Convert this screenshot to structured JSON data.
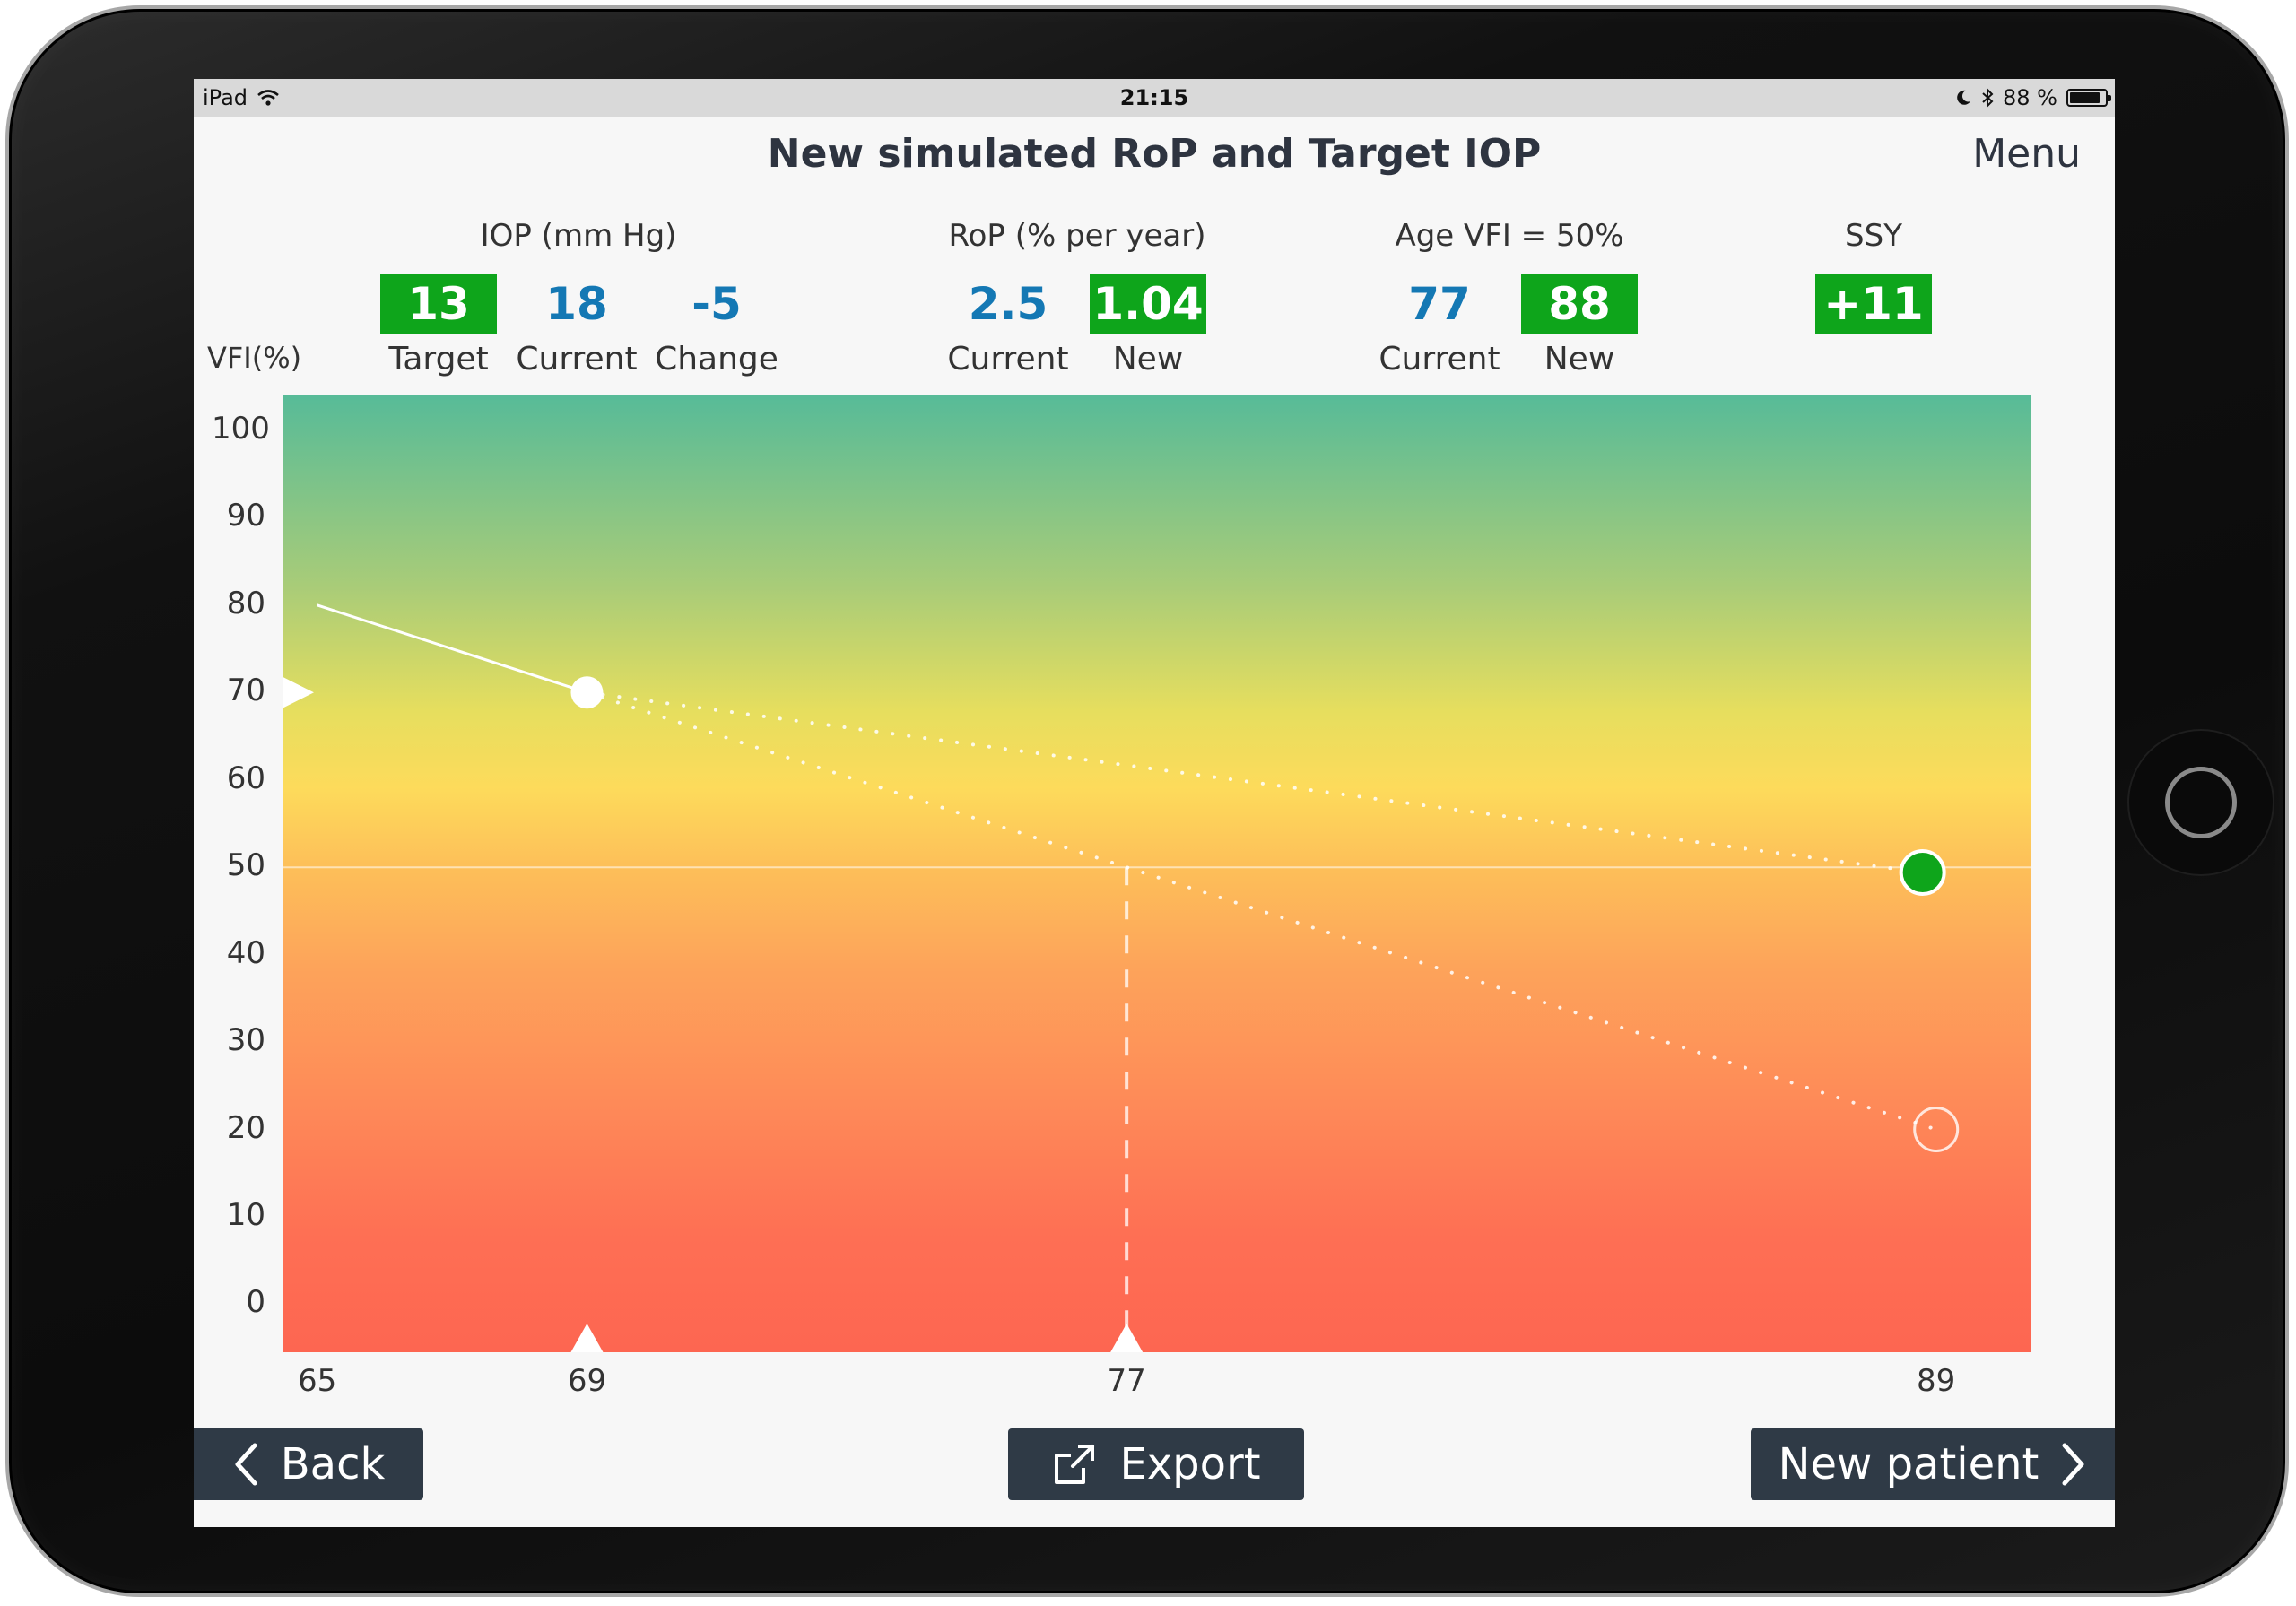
{
  "status_bar": {
    "device": "iPad",
    "time": "21:15",
    "battery": "88 %",
    "battery_level": 0.88
  },
  "header": {
    "title": "New simulated RoP and Target IOP",
    "menu_label": "Menu"
  },
  "groups": {
    "iop": {
      "title": "IOP (mm Hg)",
      "target": "13",
      "target_label": "Target",
      "current": "18",
      "current_label": "Current",
      "change": "-5",
      "change_label": "Change"
    },
    "rop": {
      "title": "RoP (% per year)",
      "current": "2.5",
      "current_label": "Current",
      "new": "1.04",
      "new_label": "New"
    },
    "age": {
      "title": "Age VFI = 50%",
      "current": "77",
      "current_label": "Current",
      "new": "88",
      "new_label": "New"
    },
    "ssy": {
      "title": "SSY",
      "value": "+11"
    }
  },
  "chart_data": {
    "type": "line",
    "ylabel": "VFI(%)",
    "y_ticks": [
      "100",
      "90",
      "80",
      "70",
      "60",
      "50",
      "40",
      "30",
      "20",
      "10",
      "0"
    ],
    "x_ticks": [
      "65",
      "69",
      "77",
      "89"
    ],
    "xlim": [
      64.5,
      90.4
    ],
    "ylim": [
      -5.5,
      104
    ],
    "threshold_line": 50,
    "series": [
      {
        "style": "solid",
        "x": [
          65,
          69
        ],
        "y": [
          80,
          70
        ]
      },
      {
        "style": "dotted",
        "x": [
          69,
          88.8
        ],
        "y": [
          70,
          49.4
        ]
      },
      {
        "style": "dotted",
        "x": [
          69,
          89
        ],
        "y": [
          70,
          20
        ]
      }
    ],
    "points": [
      {
        "x": 69,
        "y": 70,
        "style": "filled-white"
      },
      {
        "x": 88.8,
        "y": 49.4,
        "style": "filled-green"
      },
      {
        "x": 89,
        "y": 20,
        "style": "hollow-white"
      }
    ],
    "markers": {
      "y_marker": 70,
      "x_markers": [
        69,
        77
      ],
      "vertical_dashed_x": 77
    },
    "colors": {
      "green_point": "#0ea51b",
      "line": "#ffffff"
    }
  },
  "buttons": {
    "back": "Back",
    "export": "Export",
    "new_patient": "New patient"
  }
}
